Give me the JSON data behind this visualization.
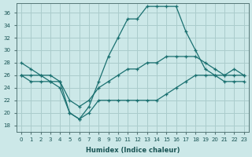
{
  "xlabel": "Humidex (Indice chaleur)",
  "bg_color": "#cce8e8",
  "grid_color": "#aacccc",
  "line_color": "#1a7070",
  "hours": [
    0,
    1,
    2,
    3,
    4,
    5,
    6,
    7,
    8,
    9,
    10,
    11,
    12,
    13,
    14,
    15,
    16,
    17,
    18,
    19,
    20,
    21,
    22,
    23
  ],
  "line_max": [
    28,
    27,
    26,
    26,
    25,
    20,
    19,
    21,
    25,
    29,
    32,
    35,
    35,
    37,
    37,
    37,
    37,
    33,
    30,
    27,
    26,
    26,
    27,
    26
  ],
  "line_mean": [
    26,
    26,
    26,
    25,
    25,
    22,
    21,
    22,
    24,
    25,
    26,
    27,
    27,
    28,
    28,
    29,
    29,
    29,
    29,
    28,
    27,
    26,
    26,
    26
  ],
  "line_min": [
    26,
    25,
    25,
    25,
    24,
    20,
    19,
    20,
    22,
    22,
    22,
    22,
    22,
    22,
    22,
    23,
    24,
    25,
    26,
    26,
    26,
    25,
    25,
    25
  ],
  "xlim": [
    -0.5,
    23.5
  ],
  "ylim": [
    17,
    37.5
  ],
  "xticks": [
    0,
    1,
    2,
    3,
    4,
    5,
    6,
    7,
    8,
    9,
    10,
    11,
    12,
    13,
    14,
    15,
    16,
    17,
    18,
    19,
    20,
    21,
    22,
    23
  ],
  "yticks": [
    18,
    20,
    22,
    24,
    26,
    28,
    30,
    32,
    34,
    36
  ]
}
